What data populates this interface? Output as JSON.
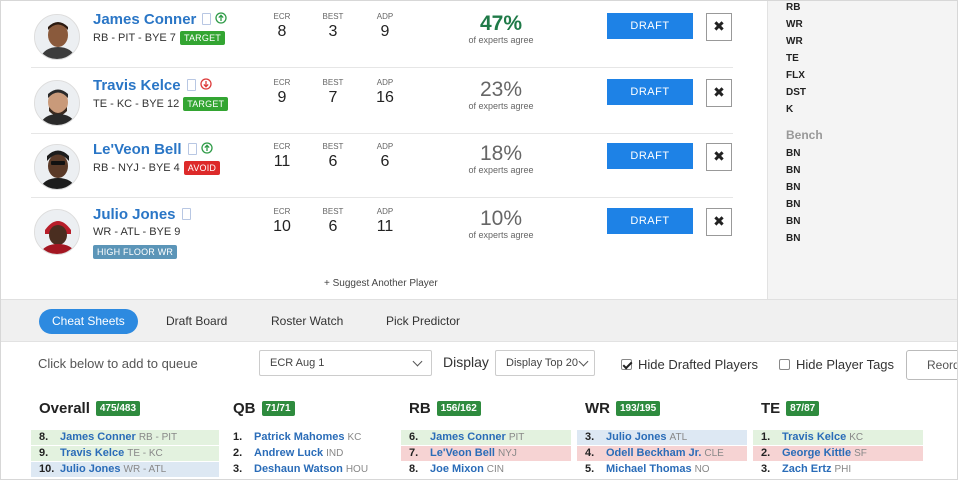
{
  "recommendations": [
    {
      "name": "James Conner",
      "meta": "RB - PIT - BYE 7",
      "tag": "TARGET",
      "trend": "up",
      "ecr": "8",
      "best": "3",
      "adp": "9",
      "pct": "47%",
      "agree": "of experts agree",
      "draft": "DRAFT",
      "remove": "✖"
    },
    {
      "name": "Travis Kelce",
      "meta": "TE - KC - BYE 12",
      "tag": "TARGET",
      "trend": "down",
      "ecr": "9",
      "best": "7",
      "adp": "16",
      "pct": "23%",
      "agree": "of experts agree",
      "draft": "DRAFT",
      "remove": "✖"
    },
    {
      "name": "Le'Veon Bell",
      "meta": "RB - NYJ - BYE 4",
      "tag": "AVOID",
      "trend": "up",
      "ecr": "11",
      "best": "6",
      "adp": "6",
      "pct": "18%",
      "agree": "of experts agree",
      "draft": "DRAFT",
      "remove": "✖"
    },
    {
      "name": "Julio Jones",
      "meta": "WR - ATL - BYE 9",
      "tag": "HIGH FLOOR WR",
      "trend": "",
      "ecr": "10",
      "best": "6",
      "adp": "11",
      "pct": "10%",
      "agree": "of experts agree",
      "draft": "DRAFT",
      "remove": "✖"
    }
  ],
  "stat_labels": {
    "ecr": "ECR",
    "best": "BEST",
    "adp": "ADP"
  },
  "suggest": "+ Suggest Another Player",
  "roster": {
    "slots": [
      "RB",
      "WR",
      "WR",
      "TE",
      "FLX",
      "DST",
      "K"
    ],
    "bench_title": "Bench",
    "bench": [
      "BN",
      "BN",
      "BN",
      "BN",
      "BN",
      "BN"
    ]
  },
  "tabs": [
    "Cheat Sheets",
    "Draft Board",
    "Roster Watch",
    "Pick Predictor"
  ],
  "active_tab": 0,
  "controls": {
    "queue_hint": "Click below to add to queue",
    "ranking_select": "ECR Aug 1",
    "display_label": "Display",
    "display_select": "Display Top 20",
    "hide_drafted": "Hide Drafted Players",
    "hide_drafted_checked": true,
    "hide_tags": "Hide Player Tags",
    "hide_tags_checked": false,
    "reorder": "Reorder"
  },
  "columns": [
    {
      "title": "Overall",
      "count": "475/483",
      "rows": [
        {
          "rank": "8.",
          "name": "James Conner",
          "team": "RB - PIT",
          "color": "g"
        },
        {
          "rank": "9.",
          "name": "Travis Kelce",
          "team": "TE - KC",
          "color": "g"
        },
        {
          "rank": "10.",
          "name": "Julio Jones",
          "team": "WR - ATL",
          "color": "b"
        }
      ]
    },
    {
      "title": "QB",
      "count": "71/71",
      "rows": [
        {
          "rank": "1.",
          "name": "Patrick Mahomes",
          "team": "KC",
          "color": ""
        },
        {
          "rank": "2.",
          "name": "Andrew Luck",
          "team": "IND",
          "color": ""
        },
        {
          "rank": "3.",
          "name": "Deshaun Watson",
          "team": "HOU",
          "color": ""
        }
      ]
    },
    {
      "title": "RB",
      "count": "156/162",
      "rows": [
        {
          "rank": "6.",
          "name": "James Conner",
          "team": "PIT",
          "color": "g"
        },
        {
          "rank": "7.",
          "name": "Le'Veon Bell",
          "team": "NYJ",
          "color": "r"
        },
        {
          "rank": "8.",
          "name": "Joe Mixon",
          "team": "CIN",
          "color": ""
        }
      ]
    },
    {
      "title": "WR",
      "count": "193/195",
      "rows": [
        {
          "rank": "3.",
          "name": "Julio Jones",
          "team": "ATL",
          "color": "b"
        },
        {
          "rank": "4.",
          "name": "Odell Beckham Jr.",
          "team": "CLE",
          "color": "r"
        },
        {
          "rank": "5.",
          "name": "Michael Thomas",
          "team": "NO",
          "color": ""
        }
      ]
    },
    {
      "title": "TE",
      "count": "87/87",
      "rows": [
        {
          "rank": "1.",
          "name": "Travis Kelce",
          "team": "KC",
          "color": "g"
        },
        {
          "rank": "2.",
          "name": "George Kittle",
          "team": "SF",
          "color": "r"
        },
        {
          "rank": "3.",
          "name": "Zach Ertz",
          "team": "PHI",
          "color": ""
        }
      ]
    }
  ]
}
